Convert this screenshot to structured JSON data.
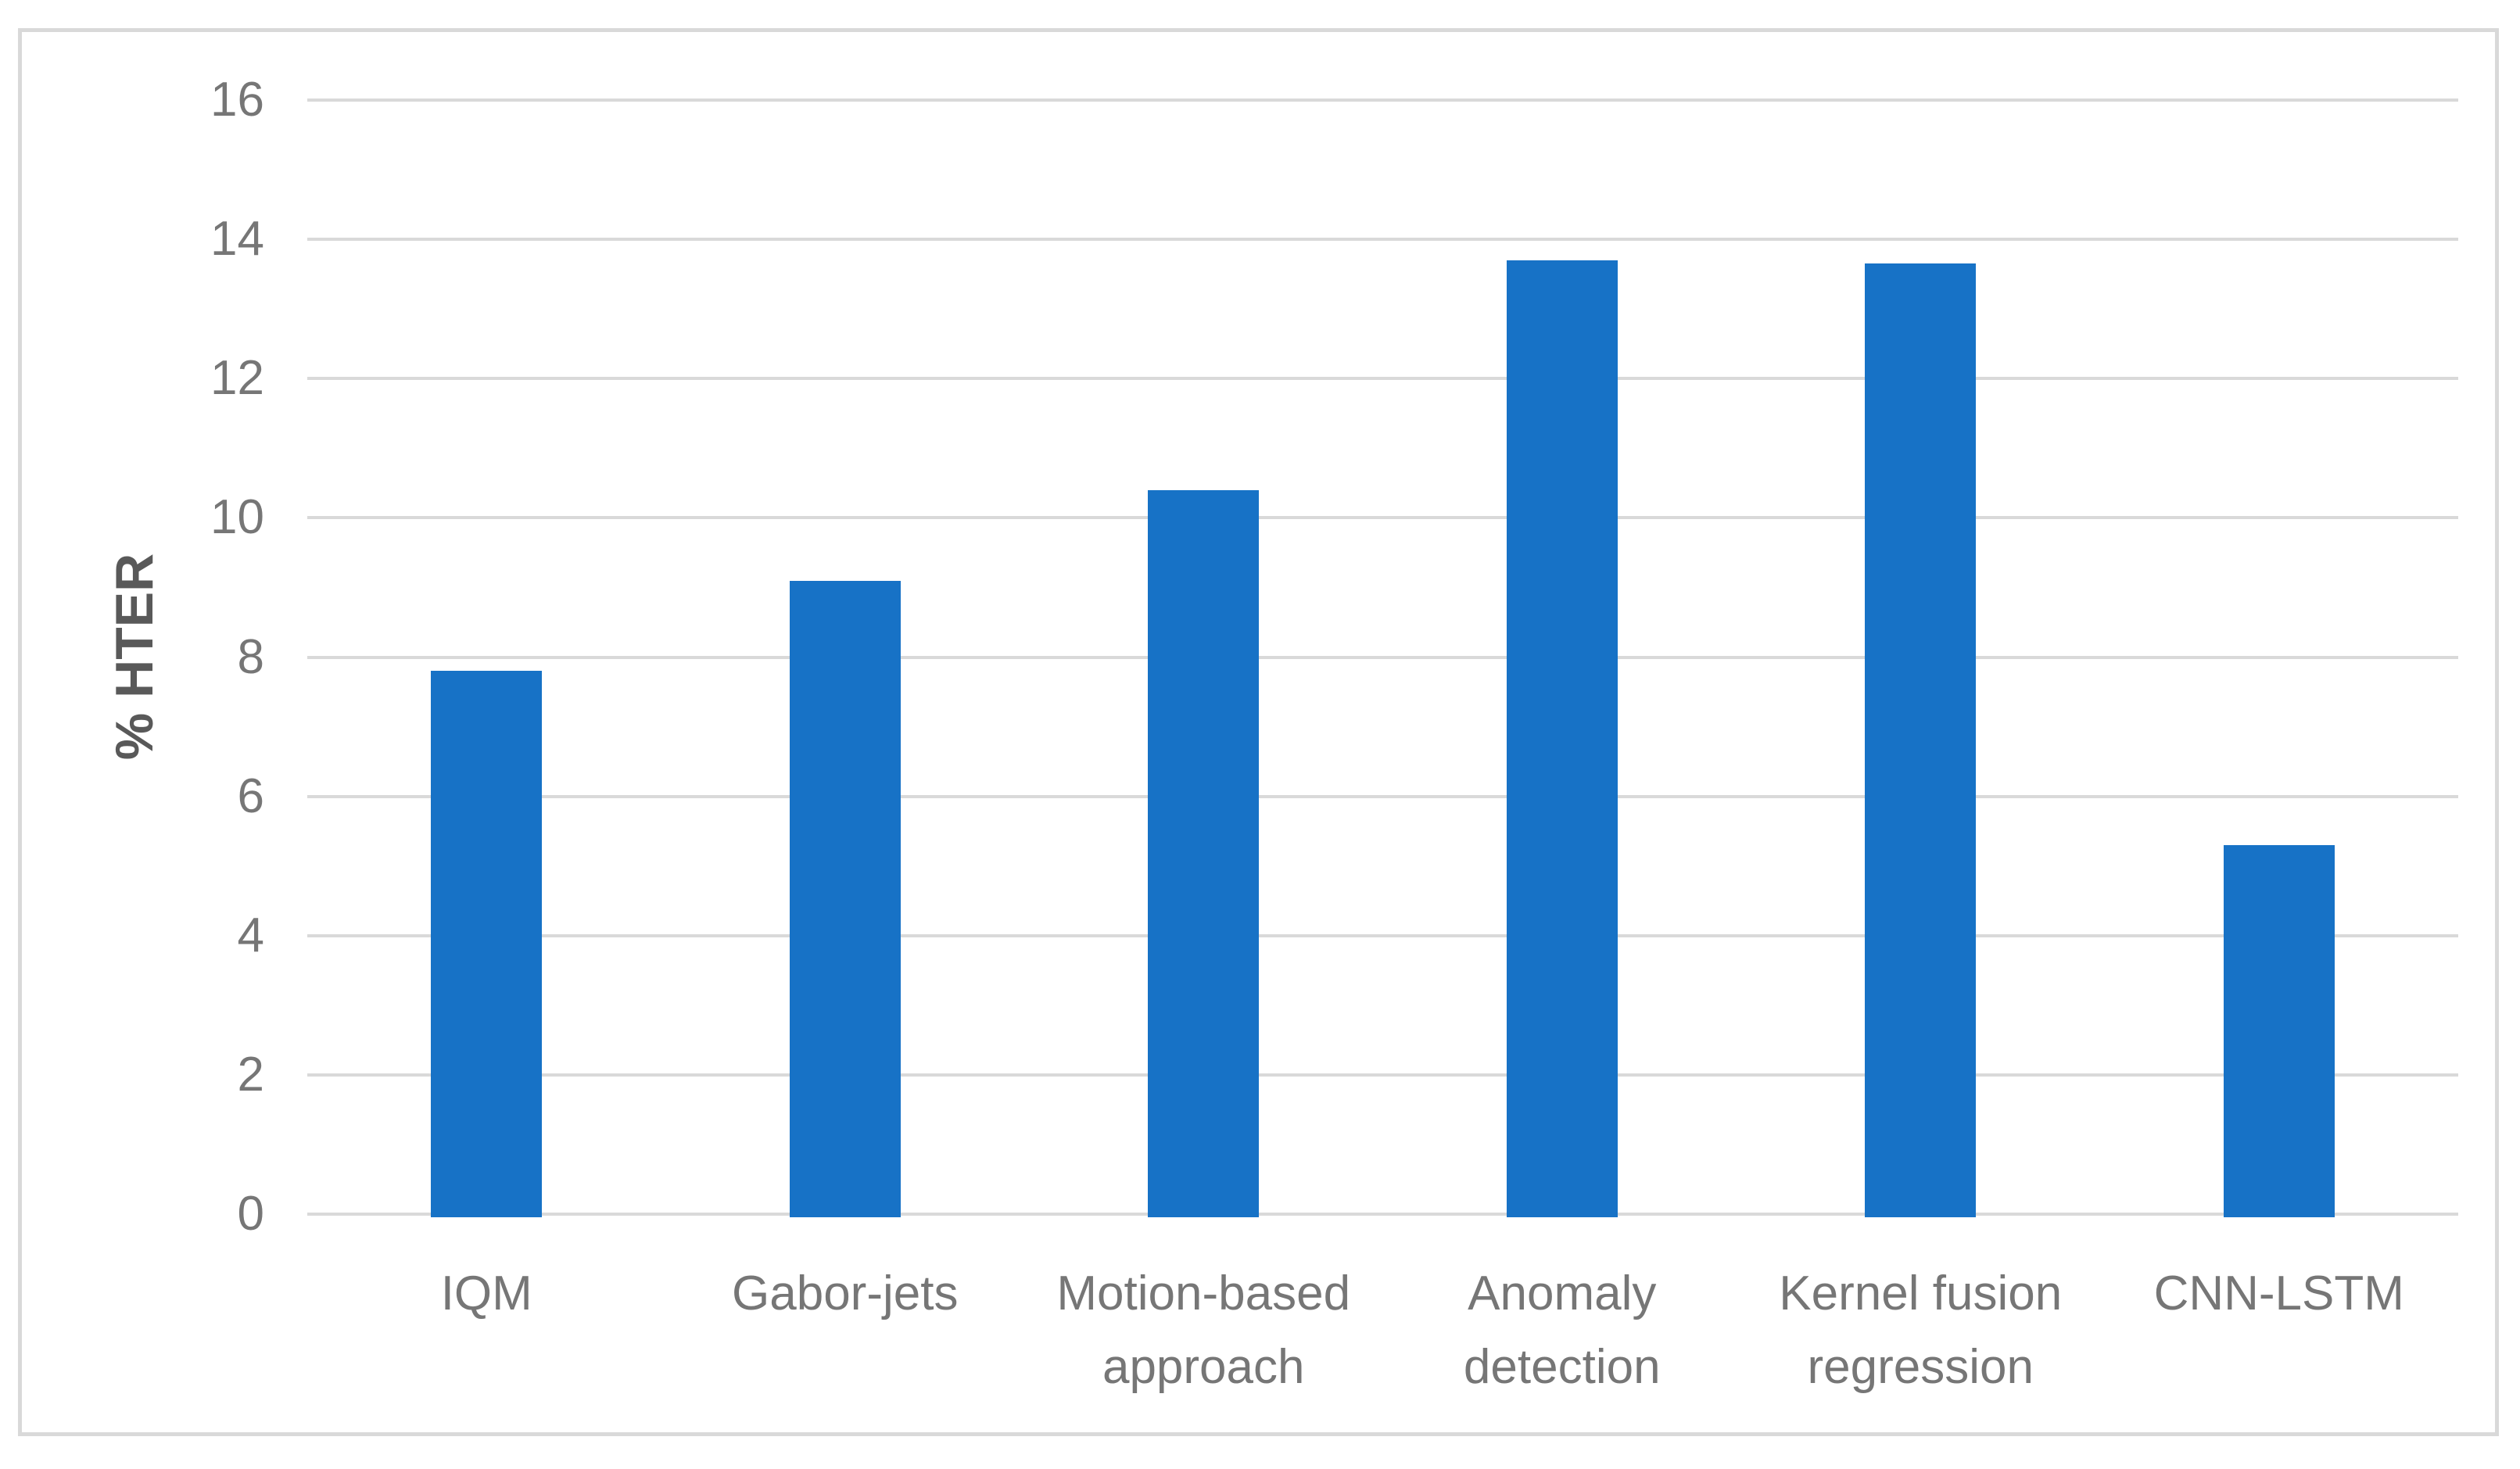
{
  "figure": {
    "background_color": "#FFFFFF",
    "border_color": "#D9D9D9"
  },
  "chart_data": {
    "type": "bar",
    "title": "",
    "xlabel": "",
    "ylabel": "% HTER",
    "categories": [
      "IQM",
      "Gabor-jets",
      "Motion-based\napproach",
      "Anomaly\ndetection",
      "Kernel fusion\nregression",
      "CNN-LSTM"
    ],
    "values": [
      7.8,
      9.1,
      10.4,
      13.7,
      13.65,
      5.3
    ],
    "ylim": [
      0,
      16
    ],
    "yticks": [
      0,
      2,
      4,
      6,
      8,
      10,
      12,
      14,
      16
    ],
    "grid": true,
    "legend": false,
    "bar_color": "#1772C6",
    "gridline_color": "#D9D9D9",
    "tick_label_color": "#767676",
    "axis_title_color": "#595959"
  }
}
